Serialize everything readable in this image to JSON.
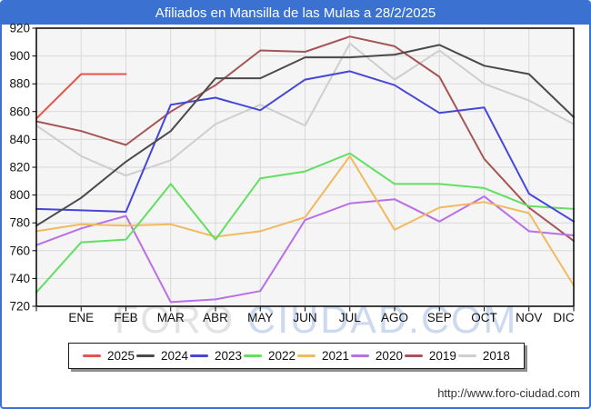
{
  "page": {
    "title": "Afiliados en Mansilla de las Mulas a 28/2/2025",
    "url": "http://www.foro-ciudad.com",
    "watermark": {
      "part1": "FORO",
      "part2": "CIUDAD.COM"
    }
  },
  "colors": {
    "title_bar": "#3b72d2",
    "page_border": "#3b72d2",
    "plot_bg": "#f5f5f5",
    "grid": "#d9d9d9",
    "axis": "#000000",
    "watermark_gray": "#e3e3e3",
    "watermark_blue": "#ccd9f1",
    "url_text": "#333333"
  },
  "chart_data": {
    "type": "line",
    "title": "Afiliados en Mansilla de las Mulas a 28/2/2025",
    "x_labels": [
      "ENE",
      "FEB",
      "MAR",
      "ABR",
      "MAY",
      "JUN",
      "JUL",
      "AGO",
      "SEP",
      "OCT",
      "NOV",
      "DIC"
    ],
    "x_note": "13 points per series: index 0 sits on the left axis (previous December), indices 1-12 are ENE-DIC.",
    "ylim": [
      720,
      920
    ],
    "y_ticks": [
      920,
      900,
      880,
      860,
      840,
      820,
      800,
      780,
      760,
      740,
      720
    ],
    "grid": true,
    "legend_position": "bottom",
    "series": [
      {
        "name": "2025",
        "color": "#e8534f",
        "values": [
          855,
          887,
          887,
          null,
          null,
          null,
          null,
          null,
          null,
          null,
          null,
          null,
          null
        ]
      },
      {
        "name": "2024",
        "color": "#4a4a4a",
        "values": [
          778,
          798,
          824,
          846,
          884,
          884,
          899,
          899,
          901,
          908,
          893,
          887,
          856
        ]
      },
      {
        "name": "2023",
        "color": "#4646d8",
        "values": [
          790,
          789,
          788,
          865,
          870,
          861,
          883,
          889,
          879,
          859,
          863,
          801,
          781
        ]
      },
      {
        "name": "2022",
        "color": "#62df62",
        "values": [
          730,
          766,
          768,
          808,
          768,
          812,
          817,
          830,
          808,
          808,
          805,
          792,
          790
        ]
      },
      {
        "name": "2021",
        "color": "#f1ba5e",
        "values": [
          774,
          779,
          778,
          779,
          770,
          774,
          784,
          828,
          775,
          791,
          795,
          787,
          735
        ]
      },
      {
        "name": "2020",
        "color": "#bc6ee6",
        "values": [
          764,
          776,
          785,
          723,
          725,
          731,
          782,
          794,
          797,
          781,
          799,
          774,
          771
        ]
      },
      {
        "name": "2019",
        "color": "#a65555",
        "values": [
          853,
          846,
          836,
          860,
          879,
          904,
          903,
          914,
          907,
          885,
          826,
          791,
          767
        ]
      },
      {
        "name": "2018",
        "color": "#cecece",
        "values": [
          850,
          828,
          814,
          825,
          851,
          865,
          850,
          909,
          883,
          904,
          880,
          868,
          851
        ]
      }
    ]
  },
  "legend": {
    "entries": [
      {
        "label": "2025",
        "color": "#e8534f"
      },
      {
        "label": "2024",
        "color": "#4a4a4a"
      },
      {
        "label": "2023",
        "color": "#4646d8"
      },
      {
        "label": "2022",
        "color": "#62df62"
      },
      {
        "label": "2021",
        "color": "#f1ba5e"
      },
      {
        "label": "2020",
        "color": "#bc6ee6"
      },
      {
        "label": "2019",
        "color": "#a65555"
      },
      {
        "label": "2018",
        "color": "#cecece"
      }
    ]
  }
}
